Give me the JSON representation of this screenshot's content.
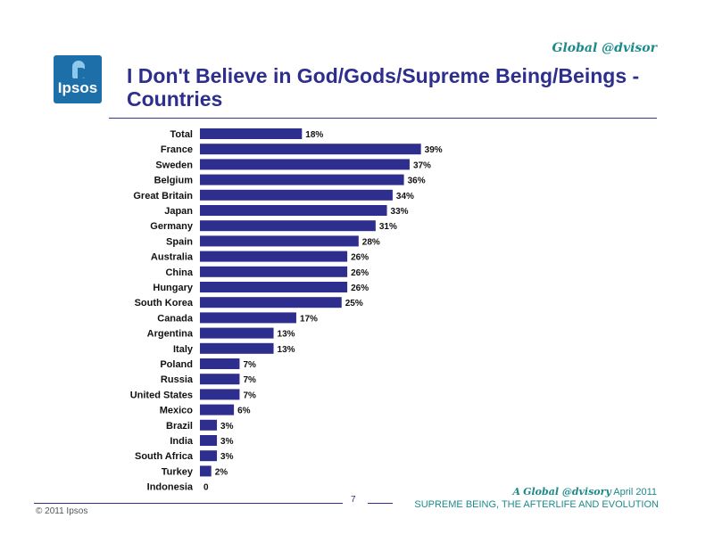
{
  "header": {
    "brand_tag": "Global @dvisor",
    "logo_text": "Ipsos",
    "title": "I Don't Believe in God/Gods/Supreme Being/Beings - Countries"
  },
  "footer": {
    "page_number": "7",
    "copyright": "© 2011 Ipsos",
    "brand_prefix": "A",
    "brand_name": "Global @dvisory",
    "brand_date": "April 2011",
    "subtitle": "SUPREME BEING, THE AFTERLIFE AND EVOLUTION"
  },
  "colors": {
    "bar": "#2e2e8e",
    "title": "#2e2e8e",
    "brand": "#1c8a8a",
    "logo": "#1c6fa8"
  },
  "chart_data": {
    "type": "bar",
    "orientation": "horizontal",
    "categories": [
      "Total",
      "France",
      "Sweden",
      "Belgium",
      "Great Britain",
      "Japan",
      "Germany",
      "Spain",
      "Australia",
      "China",
      "Hungary",
      "South Korea",
      "Canada",
      "Argentina",
      "Italy",
      "Poland",
      "Russia",
      "United States",
      "Mexico",
      "Brazil",
      "India",
      "South Africa",
      "Turkey",
      "Indonesia"
    ],
    "values": [
      18,
      39,
      37,
      36,
      34,
      33,
      31,
      28,
      26,
      26,
      26,
      25,
      17,
      13,
      13,
      7,
      7,
      7,
      6,
      3,
      3,
      3,
      2,
      0
    ],
    "labels": [
      "18%",
      "39%",
      "37%",
      "36%",
      "34%",
      "33%",
      "31%",
      "28%",
      "26%",
      "26%",
      "26%",
      "25%",
      "17%",
      "13%",
      "13%",
      "7%",
      "7%",
      "7%",
      "6%",
      "3%",
      "3%",
      "3%",
      "2%",
      "0"
    ],
    "xlim": [
      0,
      40
    ],
    "grid": false,
    "legend": "none"
  }
}
